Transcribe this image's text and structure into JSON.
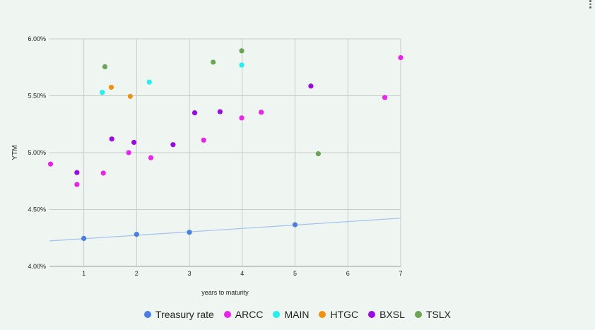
{
  "chart_data": {
    "type": "scatter",
    "xlabel": "years to maturity",
    "ylabel": "YTM",
    "xlim": [
      0.35,
      7
    ],
    "ylim": [
      4.0,
      6.0
    ],
    "x_ticks": [
      "1",
      "2",
      "3",
      "4",
      "5",
      "6",
      "7"
    ],
    "y_ticks": [
      "4.00%",
      "4.50%",
      "5.00%",
      "5.50%",
      "6.00%"
    ],
    "grid": true,
    "legend_position": "bottom",
    "series": [
      {
        "name": "Treasury rate",
        "color": "#4a7ee5",
        "points": [
          [
            1,
            4.246
          ],
          [
            2,
            4.282
          ],
          [
            3,
            4.3
          ],
          [
            5,
            4.367
          ]
        ],
        "trendline": {
          "color": "#a7c4f0",
          "x": [
            0.35,
            7
          ],
          "y": [
            4.224,
            4.424
          ]
        }
      },
      {
        "name": "ARCC",
        "color": "#ee20ee",
        "points": [
          [
            0.37,
            4.9
          ],
          [
            0.87,
            4.72
          ],
          [
            1.37,
            4.82
          ],
          [
            1.85,
            5.0
          ],
          [
            2.27,
            4.955
          ],
          [
            3.27,
            5.11
          ],
          [
            3.99,
            5.305
          ],
          [
            4.36,
            5.355
          ],
          [
            6.7,
            5.485
          ],
          [
            7.0,
            5.835
          ]
        ]
      },
      {
        "name": "MAIN",
        "color": "#1ff0f0",
        "points": [
          [
            1.35,
            5.53
          ],
          [
            2.24,
            5.62
          ],
          [
            3.99,
            5.77
          ]
        ]
      },
      {
        "name": "HTGC",
        "color": "#f0920c",
        "points": [
          [
            1.52,
            5.575
          ],
          [
            1.88,
            5.495
          ]
        ]
      },
      {
        "name": "BXSL",
        "color": "#9b09e8",
        "points": [
          [
            0.87,
            4.825
          ],
          [
            1.53,
            5.12
          ],
          [
            1.95,
            5.09
          ],
          [
            2.69,
            5.07
          ],
          [
            3.1,
            5.35
          ],
          [
            3.58,
            5.36
          ],
          [
            5.3,
            5.585
          ]
        ]
      },
      {
        "name": "TSLX",
        "color": "#6aa551",
        "points": [
          [
            1.4,
            5.755
          ],
          [
            3.45,
            5.795
          ],
          [
            3.99,
            5.895
          ],
          [
            5.44,
            4.99
          ]
        ]
      }
    ]
  }
}
